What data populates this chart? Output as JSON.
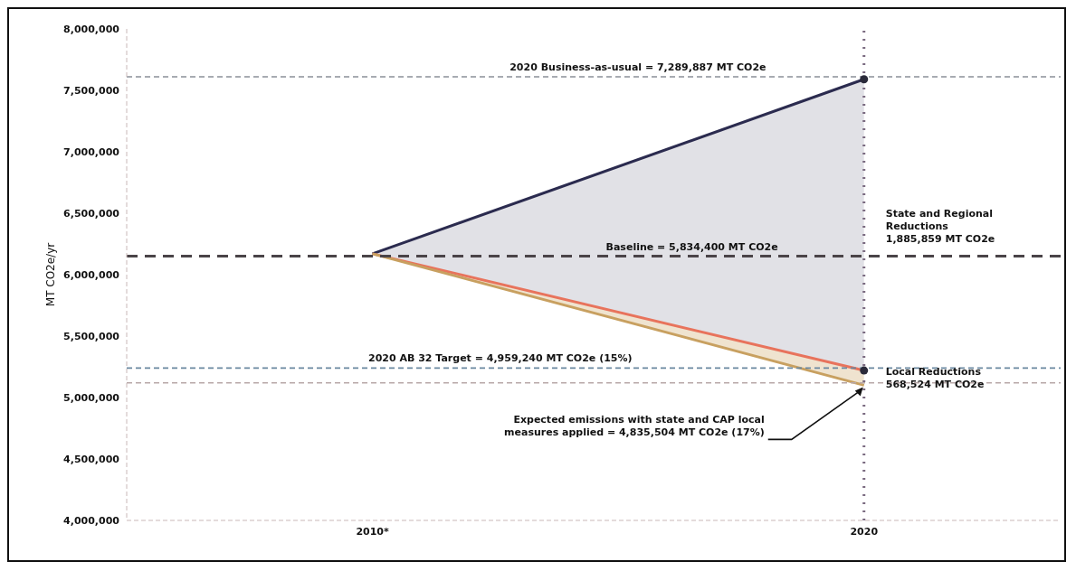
{
  "chart_data": {
    "type": "line",
    "ylabel": "MT CO2e/yr",
    "x": [
      2010,
      2020
    ],
    "xlim": [
      2005,
      2024
    ],
    "xticks": [
      {
        "value": 2010,
        "label": "2010*"
      },
      {
        "value": 2020,
        "label": "2020"
      }
    ],
    "ylim": [
      4000000,
      8000000
    ],
    "yticks": [
      {
        "value": 4000000,
        "label": "4,000,000"
      },
      {
        "value": 4500000,
        "label": "4,500,000"
      },
      {
        "value": 5000000,
        "label": "5,000,000"
      },
      {
        "value": 5500000,
        "label": "5,500,000"
      },
      {
        "value": 6000000,
        "label": "6,000,000"
      },
      {
        "value": 6500000,
        "label": "6,500,000"
      },
      {
        "value": 7000000,
        "label": "7,000,000"
      },
      {
        "value": 7500000,
        "label": "7,500,000"
      },
      {
        "value": 8000000,
        "label": "8,000,000"
      }
    ],
    "grid": false,
    "legend": false,
    "series": [
      {
        "color": "#2b2b4f",
        "values": [
          6170000,
          7590000
        ],
        "lower": [
          6170000,
          5220000
        ],
        "upper": [
          6170000,
          7590000
        ]
      },
      {
        "color": "#e8735c",
        "values": [
          6170000,
          5220000
        ]
      },
      {
        "color": "#c8a060",
        "values": [
          6170000,
          5100000
        ],
        "lower": [
          6170000,
          5100000
        ],
        "upper": [
          6170000,
          5220000
        ]
      },
      {
        "type": "scatter",
        "color": "#2a2a3a",
        "x": [
          2020,
          2020
        ],
        "values": [
          7590000,
          5220000
        ]
      }
    ],
    "ref_lines": [
      {
        "axis": "y",
        "value": 7610000,
        "color": "#8a9099",
        "line_style": "dashed"
      },
      {
        "axis": "y",
        "value": 6150000,
        "color": "#4a4448",
        "line_style": "dashed"
      },
      {
        "axis": "y",
        "value": 5240000,
        "color": "#6a88a0",
        "line_style": "dashed"
      },
      {
        "axis": "y",
        "value": 5120000,
        "color": "#b8a8a8",
        "line_style": "dashed"
      },
      {
        "axis": "x",
        "value": 2020,
        "color": "#7a6a80",
        "line_style": "dotted"
      }
    ],
    "annotations": [
      {
        "text": "2020 Business-as-usual = 7,289,887 MT CO2e",
        "x": 2015.4,
        "y": 7610000
      },
      {
        "text": "Baseline = 5,834,400 MT CO2e",
        "x": 2016.5,
        "y": 6150000
      },
      {
        "text": "2020 AB 32 Target = 4,959,240 MT CO2e (15%)",
        "x": 2012.6,
        "y": 5240000
      },
      {
        "text": "State and Regional\nReductions\n1,885,859 MT CO2e",
        "x": 2020,
        "y": 6400000
      },
      {
        "text": "Local Reductions\n568,524 MT CO2e",
        "x": 2020,
        "y": 5160000
      },
      {
        "text": "Expected emissions with state and CAP local\nmeasures applied = 4,835,504 MT CO2e (17%)",
        "x": 2020,
        "y": 5100000
      }
    ]
  }
}
